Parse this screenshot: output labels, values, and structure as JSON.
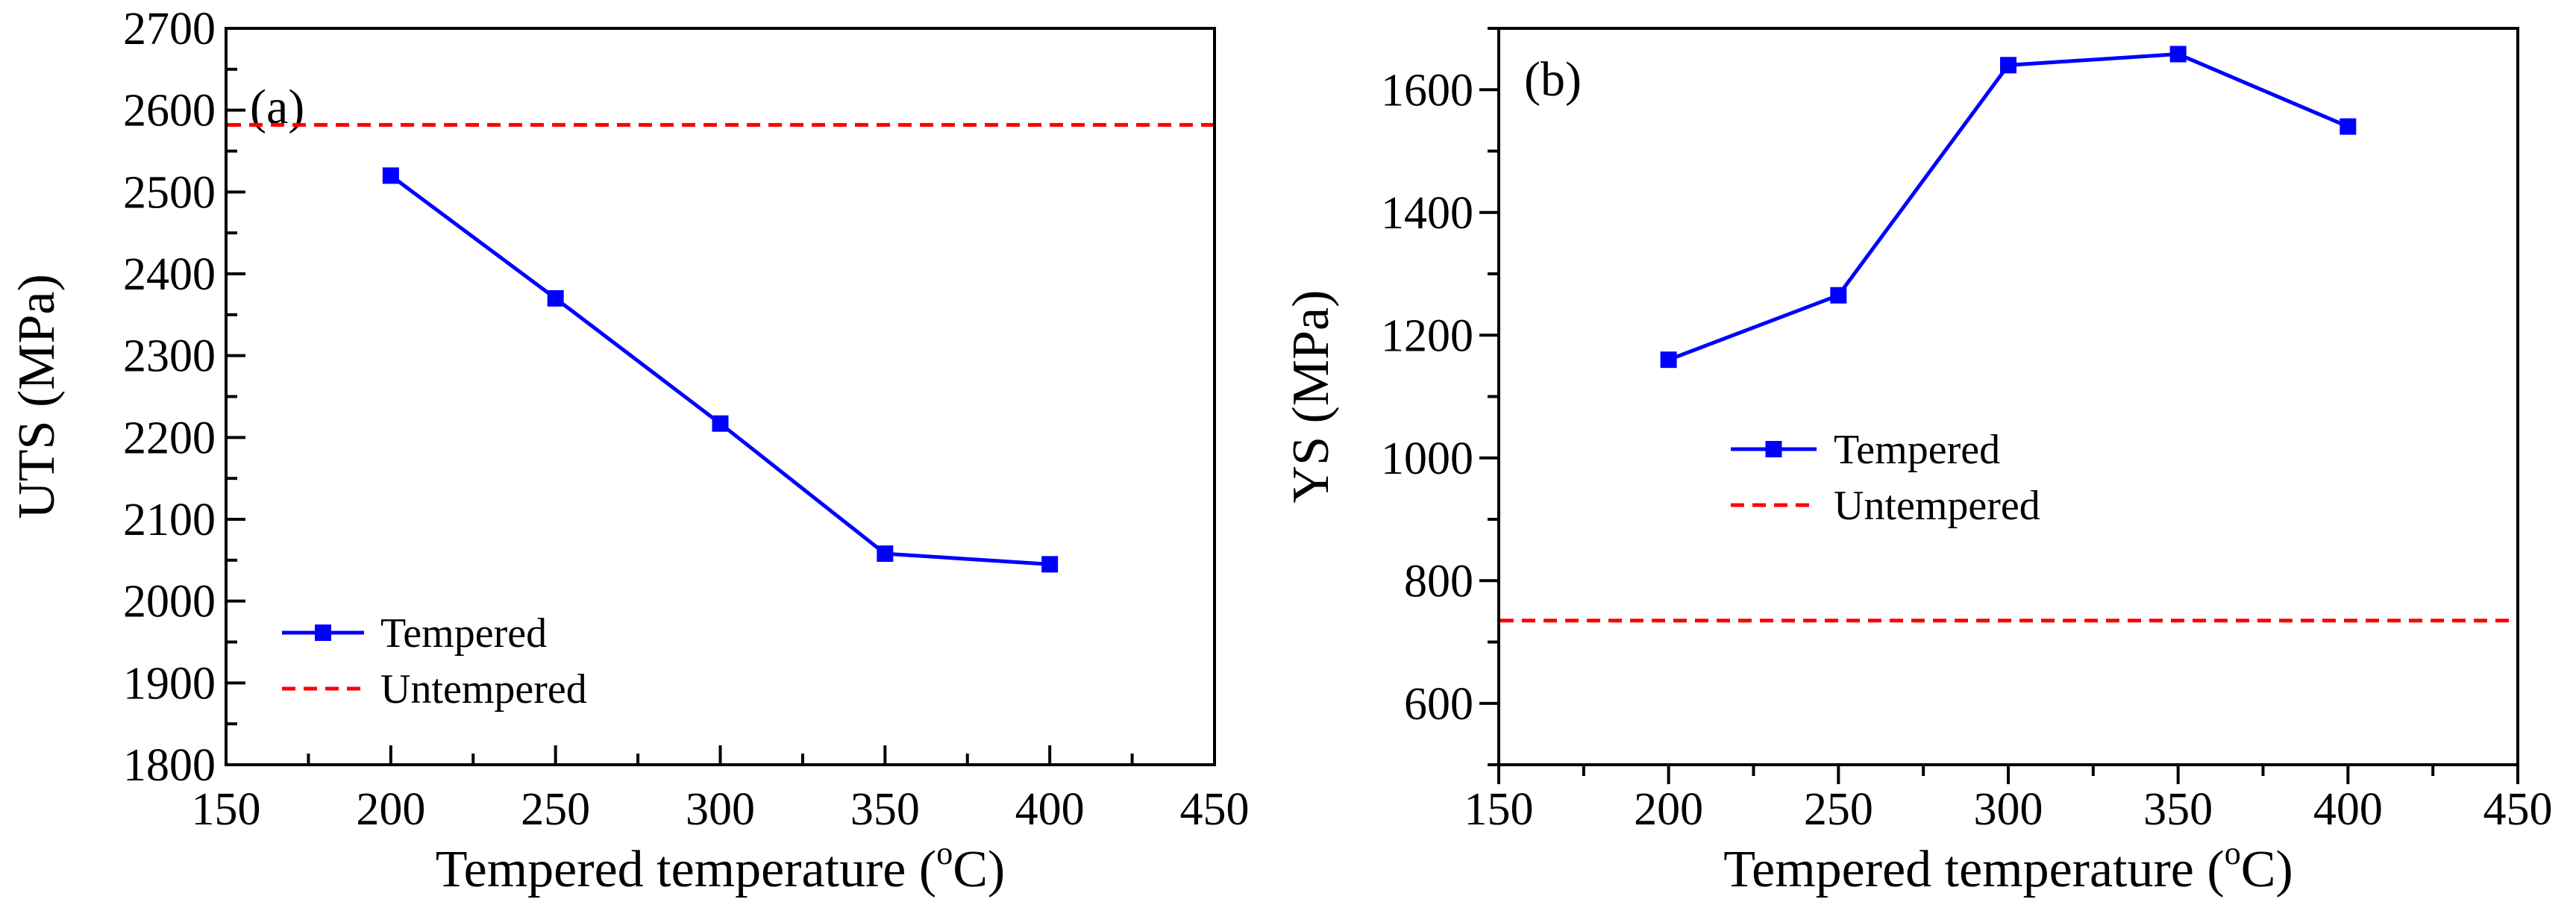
{
  "colors": {
    "tempered": "#0000ff",
    "untempered": "#ff0000",
    "axis": "#000000"
  },
  "chart_data": [
    {
      "type": "line",
      "panel_label": "(a)",
      "xlabel": "Tempered temperature (",
      "xlabel_sup": "o",
      "xlabel_unit": "C)",
      "ylabel": "UTS (MPa)",
      "xlim": [
        150,
        450
      ],
      "ylim": [
        1800,
        2700
      ],
      "x_ticks": [
        150,
        200,
        250,
        300,
        350,
        400,
        450
      ],
      "y_ticks": [
        1800,
        1900,
        2000,
        2100,
        2200,
        2300,
        2400,
        2500,
        2600,
        2700
      ],
      "legend_position": "lower-left",
      "series": [
        {
          "name": "Tempered",
          "style": "solid-square-markers",
          "x": [
            200,
            250,
            300,
            350,
            400
          ],
          "y": [
            2520,
            2370,
            2217,
            2058,
            2045
          ]
        },
        {
          "name": "Untempered",
          "style": "dashed",
          "y_constant": 2582
        }
      ]
    },
    {
      "type": "line",
      "panel_label": "(b)",
      "xlabel": "Tempered temperature (",
      "xlabel_sup": "o",
      "xlabel_unit": "C)",
      "ylabel": "YS (MPa)",
      "xlim": [
        150,
        450
      ],
      "ylim": [
        500,
        1700
      ],
      "x_ticks": [
        150,
        200,
        250,
        300,
        350,
        400,
        450
      ],
      "y_ticks": [
        600,
        800,
        1000,
        1200,
        1400,
        1600
      ],
      "legend_position": "middle-left",
      "series": [
        {
          "name": "Tempered",
          "style": "solid-square-markers",
          "x": [
            200,
            250,
            300,
            350,
            400
          ],
          "y": [
            1160,
            1265,
            1640,
            1658,
            1540
          ]
        },
        {
          "name": "Untempered",
          "style": "dashed",
          "y_constant": 735
        }
      ]
    }
  ]
}
